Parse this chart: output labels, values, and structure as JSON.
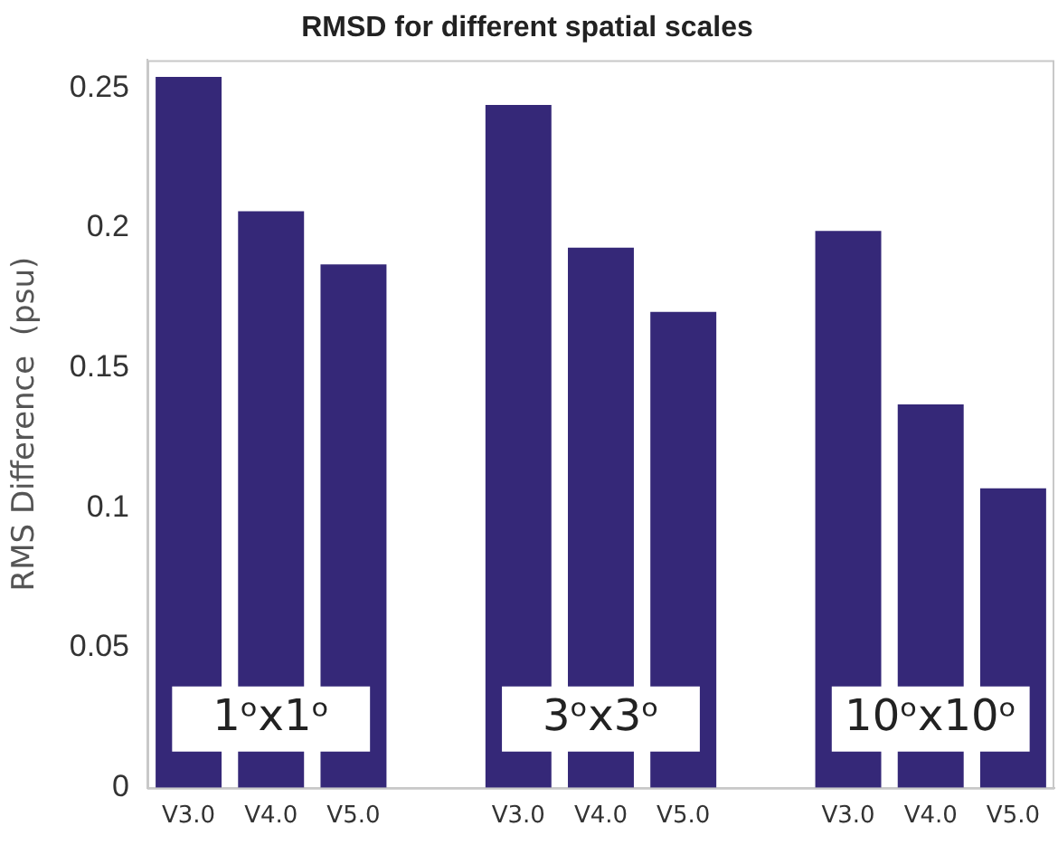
{
  "chart_data": {
    "type": "bar",
    "title": "RMSD for different spatial scales",
    "ylabel": "RMS Difference  (psu)",
    "categories": [
      "V3.0",
      "V4.0",
      "V5.0",
      null,
      "V3.0",
      "V4.0",
      "V5.0",
      null,
      "V3.0",
      "V4.0",
      "V5.0"
    ],
    "values": [
      0.254,
      0.206,
      0.187,
      null,
      0.244,
      0.193,
      0.17,
      null,
      0.199,
      0.137,
      0.107
    ],
    "color": "#352878",
    "ylim": [
      0,
      0.26
    ],
    "yticks": [
      0,
      0.05,
      0.1,
      0.15,
      0.2,
      0.25
    ],
    "grid": false,
    "legend": false,
    "annotations": [
      "1ᵒx1ᵒ",
      "3ᵒx3ᵒ",
      "10ᵒx10ᵒ"
    ]
  }
}
